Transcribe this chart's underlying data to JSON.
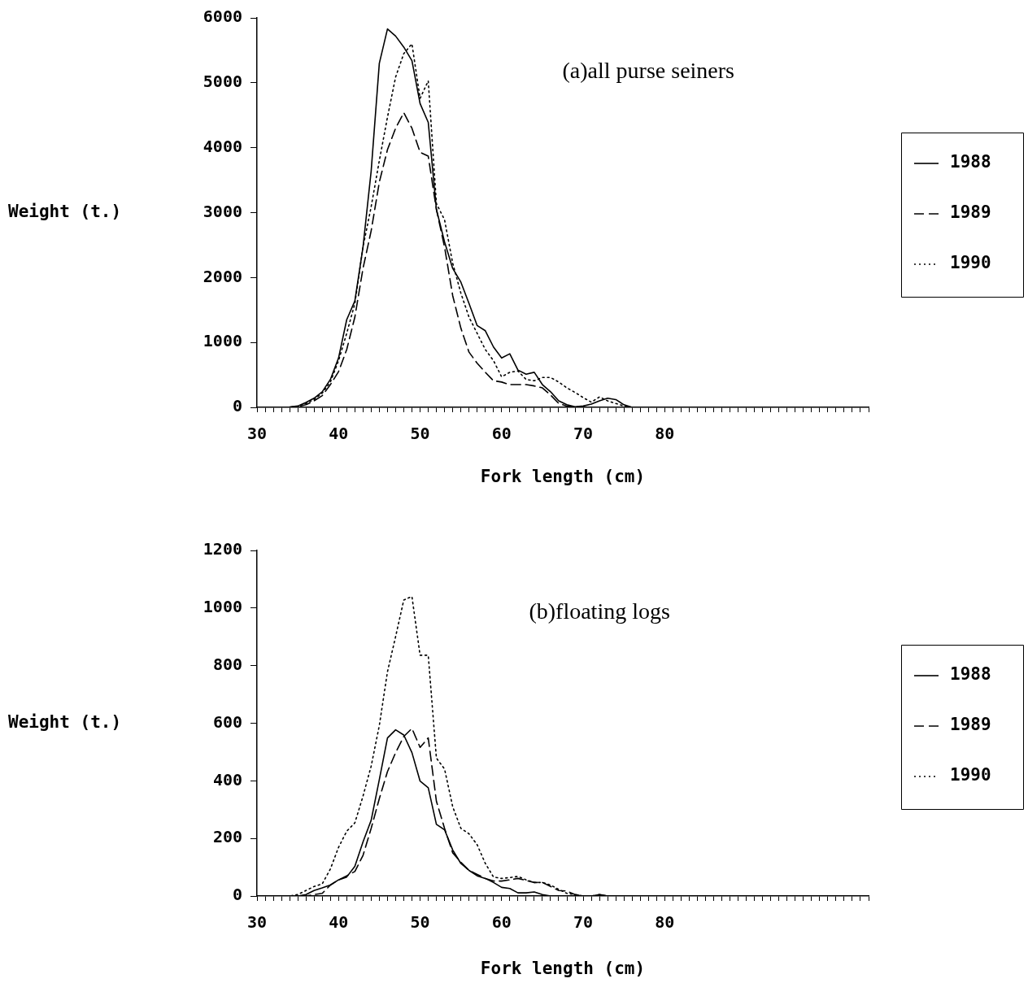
{
  "chart_data": [
    {
      "type": "line",
      "ylabel": "Weight (t.)",
      "xlabel": "Fork length (cm)",
      "annotations": [
        "(a)all purse seiners"
      ],
      "x": [
        30,
        31,
        32,
        33,
        34,
        35,
        36,
        37,
        38,
        39,
        40,
        41,
        42,
        43,
        44,
        45,
        46,
        47,
        48,
        49,
        50,
        51,
        52,
        53,
        54,
        55,
        56,
        57,
        58,
        59,
        60,
        61,
        62,
        63,
        64,
        65,
        66,
        67,
        68,
        69,
        70,
        71,
        72,
        73,
        74,
        75,
        76
      ],
      "series": [
        {
          "name": "1988",
          "color": "#000000",
          "line_style": "solid",
          "values": [
            0,
            0,
            0,
            0,
            5,
            20,
            75,
            140,
            240,
            430,
            760,
            1350,
            1640,
            2470,
            3640,
            5300,
            5830,
            5720,
            5550,
            5340,
            4680,
            4390,
            3050,
            2550,
            2140,
            1930,
            1600,
            1260,
            1180,
            930,
            760,
            825,
            575,
            510,
            540,
            350,
            240,
            100,
            40,
            10,
            20,
            50,
            100,
            140,
            120,
            40,
            0
          ]
        },
        {
          "name": "1989",
          "color": "#000000",
          "line_style": "dashed",
          "values": [
            0,
            0,
            0,
            0,
            0,
            10,
            40,
            100,
            180,
            350,
            550,
            890,
            1390,
            2140,
            2720,
            3470,
            3970,
            4300,
            4540,
            4300,
            3930,
            3870,
            3050,
            2470,
            1720,
            1220,
            850,
            680,
            540,
            410,
            390,
            350,
            350,
            350,
            330,
            300,
            190,
            60,
            20,
            10,
            0,
            0,
            0,
            0,
            0,
            0,
            0
          ]
        },
        {
          "name": "1990",
          "color": "#000000",
          "line_style": "dotted",
          "values": [
            0,
            0,
            0,
            0,
            5,
            15,
            60,
            120,
            220,
            390,
            720,
            1140,
            1600,
            2470,
            3090,
            3800,
            4470,
            5090,
            5450,
            5600,
            4760,
            5030,
            3140,
            2890,
            2220,
            1760,
            1390,
            1140,
            890,
            720,
            470,
            540,
            560,
            430,
            410,
            460,
            460,
            390,
            300,
            230,
            150,
            80,
            160,
            100,
            60,
            20,
            0
          ]
        }
      ],
      "xlim": [
        30,
        105
      ],
      "xticks": [
        30,
        {
          "value": 31,
          "label": null
        },
        {
          "value": 32,
          "label": null
        },
        {
          "value": 33,
          "label": null
        },
        {
          "value": 34,
          "label": null
        },
        {
          "value": 35,
          "label": null
        },
        {
          "value": 36,
          "label": null
        },
        {
          "value": 37,
          "label": null
        },
        {
          "value": 38,
          "label": null
        },
        {
          "value": 39,
          "label": null
        },
        40,
        {
          "value": 41,
          "label": null
        },
        {
          "value": 42,
          "label": null
        },
        {
          "value": 43,
          "label": null
        },
        {
          "value": 44,
          "label": null
        },
        {
          "value": 45,
          "label": null
        },
        {
          "value": 46,
          "label": null
        },
        {
          "value": 47,
          "label": null
        },
        {
          "value": 48,
          "label": null
        },
        {
          "value": 49,
          "label": null
        },
        50,
        {
          "value": 51,
          "label": null
        },
        {
          "value": 52,
          "label": null
        },
        {
          "value": 53,
          "label": null
        },
        {
          "value": 54,
          "label": null
        },
        {
          "value": 55,
          "label": null
        },
        {
          "value": 56,
          "label": null
        },
        {
          "value": 57,
          "label": null
        },
        {
          "value": 58,
          "label": null
        },
        {
          "value": 59,
          "label": null
        },
        60,
        {
          "value": 61,
          "label": null
        },
        {
          "value": 62,
          "label": null
        },
        {
          "value": 63,
          "label": null
        },
        {
          "value": 64,
          "label": null
        },
        {
          "value": 65,
          "label": null
        },
        {
          "value": 66,
          "label": null
        },
        {
          "value": 67,
          "label": null
        },
        {
          "value": 68,
          "label": null
        },
        {
          "value": 69,
          "label": null
        },
        70,
        {
          "value": 71,
          "label": null
        },
        {
          "value": 72,
          "label": null
        },
        {
          "value": 73,
          "label": null
        },
        {
          "value": 74,
          "label": null
        },
        {
          "value": 75,
          "label": null
        },
        {
          "value": 76,
          "label": null
        },
        {
          "value": 77,
          "label": null
        },
        {
          "value": 78,
          "label": null
        },
        {
          "value": 79,
          "label": null
        },
        80,
        {
          "value": 81,
          "label": null
        },
        {
          "value": 82,
          "label": null
        },
        {
          "value": 83,
          "label": null
        },
        {
          "value": 84,
          "label": null
        },
        {
          "value": 85,
          "label": null
        },
        {
          "value": 86,
          "label": null
        },
        {
          "value": 87,
          "label": null
        },
        {
          "value": 88,
          "label": null
        },
        {
          "value": 89,
          "label": null
        },
        {
          "value": 90,
          "label": null
        },
        {
          "value": 91,
          "label": null
        },
        {
          "value": 92,
          "label": null
        },
        {
          "value": 93,
          "label": null
        },
        {
          "value": 94,
          "label": null
        },
        {
          "value": 95,
          "label": null
        },
        {
          "value": 96,
          "label": null
        },
        {
          "value": 97,
          "label": null
        },
        {
          "value": 98,
          "label": null
        },
        {
          "value": 99,
          "label": null
        },
        {
          "value": 100,
          "label": null
        },
        {
          "value": 101,
          "label": null
        },
        {
          "value": 102,
          "label": null
        },
        {
          "value": 103,
          "label": null
        },
        {
          "value": 104,
          "label": null
        },
        {
          "value": 105,
          "label": null
        }
      ],
      "ylim": [
        0,
        6000
      ],
      "yticks": [
        0,
        1000,
        2000,
        3000,
        4000,
        5000,
        6000
      ],
      "legend": "right",
      "grid": false,
      "marker": "none"
    },
    {
      "type": "line",
      "ylabel": "Weight (t.)",
      "xlabel": "Fork length (cm)",
      "annotations": [
        "(b)floating logs"
      ],
      "x": [
        30,
        31,
        32,
        33,
        34,
        35,
        36,
        37,
        38,
        39,
        40,
        41,
        42,
        43,
        44,
        45,
        46,
        47,
        48,
        49,
        50,
        51,
        52,
        53,
        54,
        55,
        56,
        57,
        58,
        59,
        60,
        61,
        62,
        63,
        64,
        65,
        66,
        67,
        68,
        69,
        70,
        71,
        72,
        73,
        74,
        75,
        76
      ],
      "series": [
        {
          "name": "1988",
          "color": "#000000",
          "line_style": "solid",
          "values": [
            0,
            0,
            0,
            0,
            0,
            0,
            5,
            19,
            28,
            38,
            56,
            66,
            103,
            188,
            263,
            404,
            549,
            577,
            559,
            498,
            399,
            376,
            249,
            230,
            160,
            113,
            89,
            70,
            61,
            47,
            30,
            26,
            11,
            11,
            14,
            5,
            0,
            0,
            0,
            0,
            0,
            0,
            5,
            0,
            0,
            0,
            0
          ]
        },
        {
          "name": "1989",
          "color": "#000000",
          "line_style": "dashed",
          "values": [
            0,
            0,
            0,
            0,
            0,
            0,
            0,
            5,
            9,
            38,
            56,
            70,
            85,
            141,
            235,
            338,
            432,
            498,
            554,
            582,
            516,
            549,
            329,
            235,
            150,
            117,
            89,
            75,
            61,
            52,
            52,
            56,
            61,
            54,
            47,
            47,
            33,
            19,
            17,
            5,
            0,
            0,
            5,
            0,
            0,
            0,
            0
          ]
        },
        {
          "name": "1990",
          "color": "#000000",
          "line_style": "dotted",
          "values": [
            0,
            0,
            0,
            0,
            0,
            5,
            19,
            33,
            42,
            94,
            169,
            225,
            254,
            347,
            451,
            592,
            779,
            901,
            1028,
            1040,
            836,
            836,
            479,
            441,
            310,
            235,
            216,
            178,
            113,
            66,
            61,
            64,
            68,
            56,
            47,
            47,
            38,
            23,
            9,
            5,
            0,
            0,
            0,
            0,
            0,
            0,
            0
          ]
        }
      ],
      "xlim": [
        30,
        105
      ],
      "xticks": [
        30,
        {
          "value": 31,
          "label": null
        },
        {
          "value": 32,
          "label": null
        },
        {
          "value": 33,
          "label": null
        },
        {
          "value": 34,
          "label": null
        },
        {
          "value": 35,
          "label": null
        },
        {
          "value": 36,
          "label": null
        },
        {
          "value": 37,
          "label": null
        },
        {
          "value": 38,
          "label": null
        },
        {
          "value": 39,
          "label": null
        },
        40,
        {
          "value": 41,
          "label": null
        },
        {
          "value": 42,
          "label": null
        },
        {
          "value": 43,
          "label": null
        },
        {
          "value": 44,
          "label": null
        },
        {
          "value": 45,
          "label": null
        },
        {
          "value": 46,
          "label": null
        },
        {
          "value": 47,
          "label": null
        },
        {
          "value": 48,
          "label": null
        },
        {
          "value": 49,
          "label": null
        },
        50,
        {
          "value": 51,
          "label": null
        },
        {
          "value": 52,
          "label": null
        },
        {
          "value": 53,
          "label": null
        },
        {
          "value": 54,
          "label": null
        },
        {
          "value": 55,
          "label": null
        },
        {
          "value": 56,
          "label": null
        },
        {
          "value": 57,
          "label": null
        },
        {
          "value": 58,
          "label": null
        },
        {
          "value": 59,
          "label": null
        },
        60,
        {
          "value": 61,
          "label": null
        },
        {
          "value": 62,
          "label": null
        },
        {
          "value": 63,
          "label": null
        },
        {
          "value": 64,
          "label": null
        },
        {
          "value": 65,
          "label": null
        },
        {
          "value": 66,
          "label": null
        },
        {
          "value": 67,
          "label": null
        },
        {
          "value": 68,
          "label": null
        },
        {
          "value": 69,
          "label": null
        },
        70,
        {
          "value": 71,
          "label": null
        },
        {
          "value": 72,
          "label": null
        },
        {
          "value": 73,
          "label": null
        },
        {
          "value": 74,
          "label": null
        },
        {
          "value": 75,
          "label": null
        },
        {
          "value": 76,
          "label": null
        },
        {
          "value": 77,
          "label": null
        },
        {
          "value": 78,
          "label": null
        },
        {
          "value": 79,
          "label": null
        },
        80,
        {
          "value": 81,
          "label": null
        },
        {
          "value": 82,
          "label": null
        },
        {
          "value": 83,
          "label": null
        },
        {
          "value": 84,
          "label": null
        },
        {
          "value": 85,
          "label": null
        },
        {
          "value": 86,
          "label": null
        },
        {
          "value": 87,
          "label": null
        },
        {
          "value": 88,
          "label": null
        },
        {
          "value": 89,
          "label": null
        },
        {
          "value": 90,
          "label": null
        },
        {
          "value": 91,
          "label": null
        },
        {
          "value": 92,
          "label": null
        },
        {
          "value": 93,
          "label": null
        },
        {
          "value": 94,
          "label": null
        },
        {
          "value": 95,
          "label": null
        },
        {
          "value": 96,
          "label": null
        },
        {
          "value": 97,
          "label": null
        },
        {
          "value": 98,
          "label": null
        },
        {
          "value": 99,
          "label": null
        },
        {
          "value": 100,
          "label": null
        },
        {
          "value": 101,
          "label": null
        },
        {
          "value": 102,
          "label": null
        },
        {
          "value": 103,
          "label": null
        },
        {
          "value": 104,
          "label": null
        },
        {
          "value": 105,
          "label": null
        }
      ],
      "ylim": [
        0,
        1200
      ],
      "yticks": [
        0,
        200,
        400,
        600,
        800,
        1000,
        1200
      ],
      "legend": "right",
      "grid": false,
      "marker": "none"
    }
  ]
}
